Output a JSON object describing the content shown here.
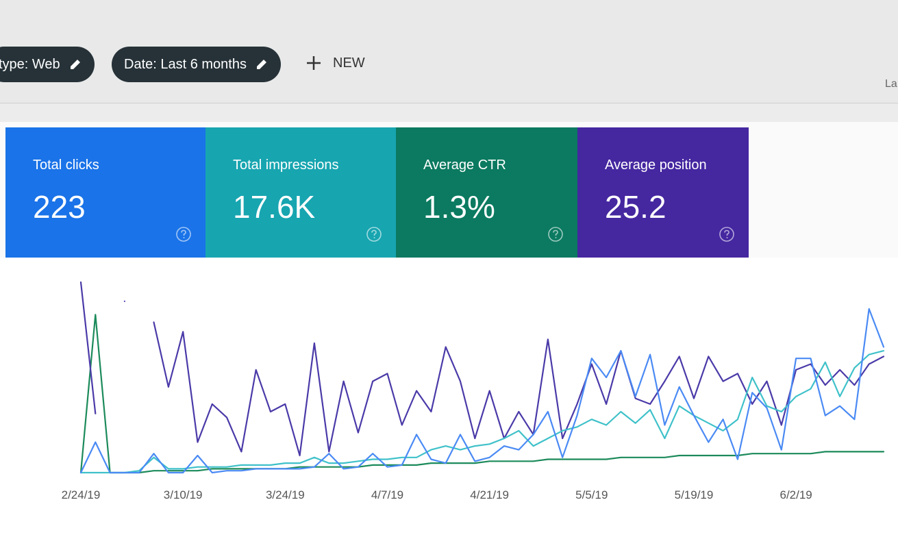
{
  "filters": [
    "type: Web",
    "Date: Last 6 months"
  ],
  "new_button": "NEW",
  "cut_off_text": "La",
  "metrics": [
    {
      "label": "Total clicks",
      "value": "223",
      "color": "#1a73e8"
    },
    {
      "label": "Total impressions",
      "value": "17.6K",
      "color": "#17a5b0"
    },
    {
      "label": "Average CTR",
      "value": "1.3%",
      "color": "#0b7a60"
    },
    {
      "label": "Average position",
      "value": "25.2",
      "color": "#4527a0"
    }
  ],
  "chart_data": {
    "type": "line",
    "categories": [
      "2/24/19",
      null,
      null,
      null,
      null,
      null,
      null,
      "3/10/19",
      null,
      null,
      null,
      null,
      null,
      null,
      "3/24/19",
      null,
      null,
      null,
      null,
      null,
      null,
      "4/7/19",
      null,
      null,
      null,
      null,
      null,
      null,
      "4/21/19",
      null,
      null,
      null,
      null,
      null,
      null,
      "5/5/19",
      null,
      null,
      null,
      null,
      null,
      null,
      "5/19/19",
      null,
      null,
      null,
      null,
      null,
      null,
      "6/2/19",
      null,
      null,
      null,
      null,
      null,
      null
    ],
    "ylim": [
      0,
      100
    ],
    "series": [
      {
        "name": "Total clicks",
        "color": "#4a8af4",
        "values": [
          0,
          16,
          0,
          0,
          0,
          10,
          0,
          0,
          9,
          0,
          1,
          1,
          2,
          2,
          2,
          2,
          3,
          10,
          2,
          3,
          10,
          3,
          4,
          20,
          7,
          5,
          20,
          6,
          8,
          14,
          12,
          20,
          32,
          8,
          30,
          60,
          50,
          64,
          40,
          62,
          25,
          45,
          30,
          16,
          28,
          7,
          42,
          34,
          12,
          60,
          60,
          30,
          35,
          28,
          86,
          66
        ]
      },
      {
        "name": "Total impressions",
        "color": "#3fc1c9",
        "values": [
          0,
          0,
          0,
          0,
          1,
          8,
          2,
          2,
          3,
          3,
          3,
          4,
          4,
          4,
          5,
          5,
          8,
          5,
          5,
          6,
          7,
          7,
          8,
          8,
          12,
          14,
          12,
          14,
          15,
          18,
          22,
          14,
          18,
          22,
          24,
          28,
          25,
          32,
          26,
          33,
          18,
          35,
          30,
          26,
          22,
          28,
          50,
          35,
          32,
          40,
          44,
          58,
          40,
          55,
          62,
          64
        ]
      },
      {
        "name": "Average CTR",
        "color": "#1b8a5a",
        "values": [
          0,
          83,
          0,
          0,
          0,
          1,
          1,
          1,
          1,
          2,
          2,
          2,
          2,
          2,
          2,
          3,
          3,
          3,
          3,
          3,
          4,
          4,
          4,
          4,
          5,
          5,
          5,
          5,
          6,
          6,
          6,
          6,
          7,
          7,
          7,
          7,
          7,
          8,
          8,
          8,
          8,
          9,
          9,
          9,
          9,
          9,
          10,
          10,
          10,
          10,
          10,
          11,
          11,
          11,
          11,
          11
        ]
      },
      {
        "name": "Average position",
        "color": "#4a3aa8",
        "values": [
          100,
          31,
          null,
          90,
          null,
          79,
          45,
          74,
          16,
          36,
          29,
          11,
          54,
          32,
          36,
          9,
          68,
          11,
          48,
          21,
          48,
          52,
          25,
          43,
          32,
          66,
          48,
          18,
          43,
          18,
          32,
          20,
          70,
          18,
          36,
          57,
          36,
          64,
          39,
          36,
          48,
          61,
          39,
          61,
          48,
          52,
          36,
          48,
          25,
          54,
          57,
          46,
          54,
          46,
          57,
          61
        ]
      }
    ]
  }
}
